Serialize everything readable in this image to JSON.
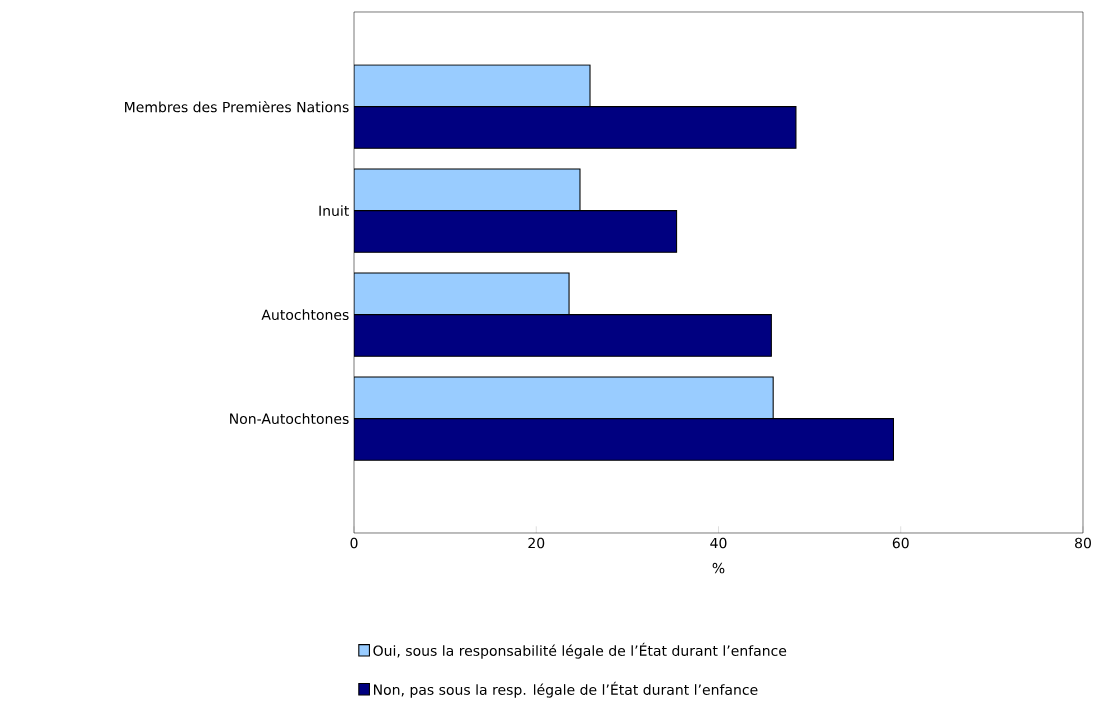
{
  "chart_data": {
    "type": "bar",
    "orientation": "horizontal",
    "xlabel": "%",
    "categories": [
      "Membres des Premières Nations",
      "Inuit",
      "Autochtones",
      "Non-Autochtones"
    ],
    "series": [
      {
        "name": "Oui, sous la responsabilité légale de l’État durant l’enfance",
        "color": "#99ccff",
        "values": [
          25.9,
          24.8,
          23.6,
          46.0
        ]
      },
      {
        "name": "Non, pas sous la resp. légale de l’État durant l’enfance",
        "color": "#000080",
        "values": [
          48.5,
          35.4,
          45.8,
          59.2
        ]
      }
    ],
    "xlim": [
      0,
      80
    ],
    "xticks": [
      0,
      20,
      40,
      60,
      80
    ],
    "grid": false,
    "legend": "bottom"
  }
}
